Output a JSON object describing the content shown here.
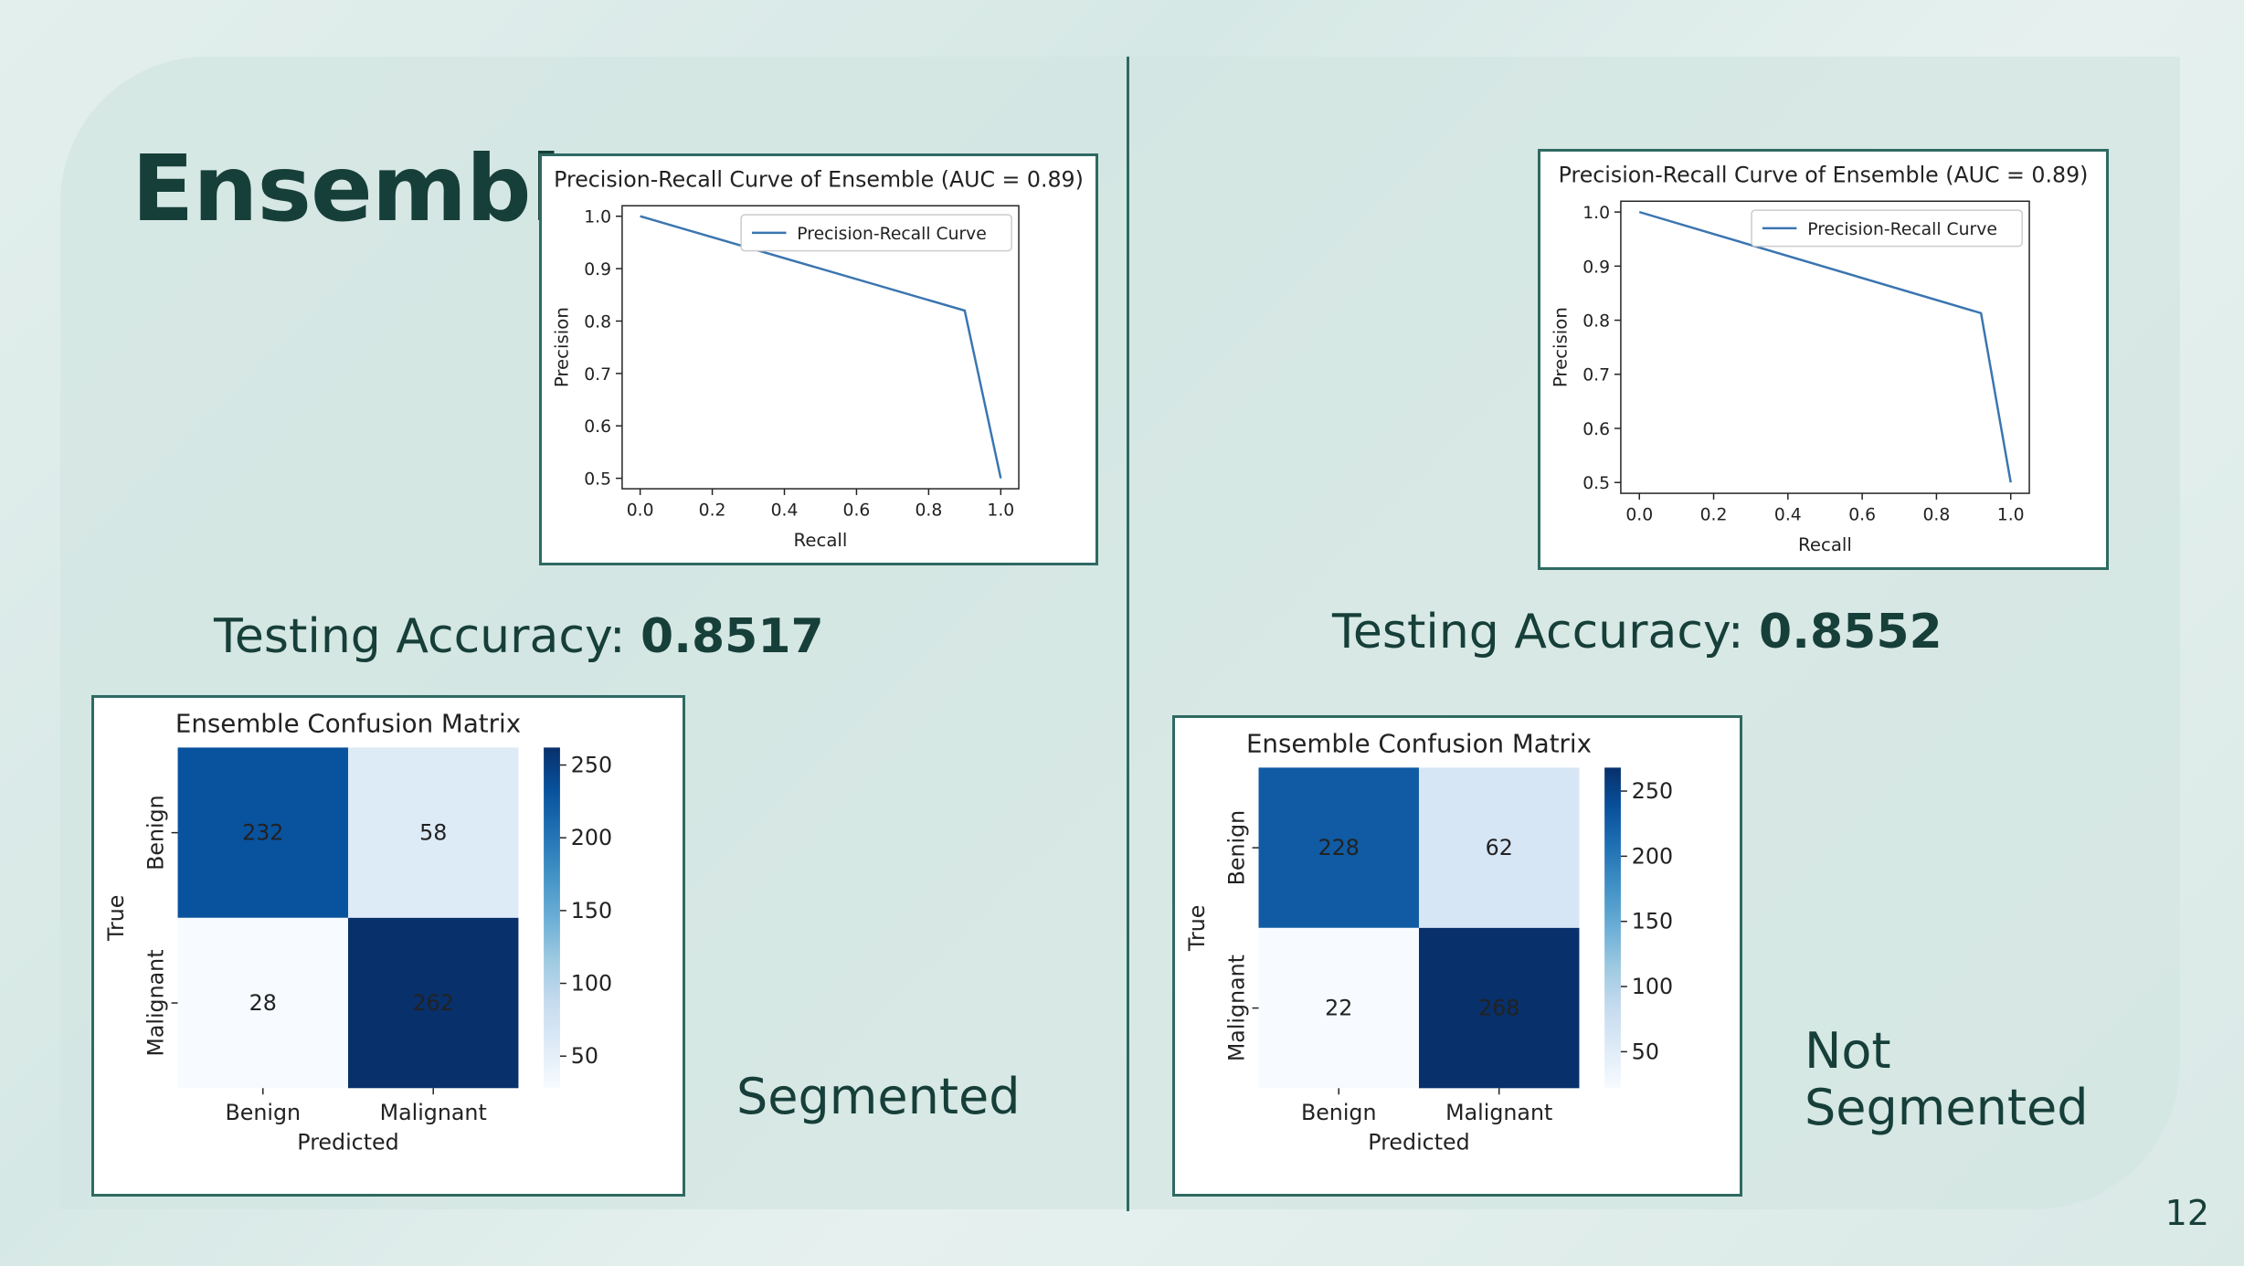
{
  "slide": {
    "title": "Ensemble",
    "page_number": "12"
  },
  "panels": [
    {
      "accuracy_label": "Testing Accuracy:",
      "accuracy_value": "0.8517",
      "variant_label": "Segmented"
    },
    {
      "accuracy_label": "Testing Accuracy:",
      "accuracy_value": "0.8552",
      "variant_label": "Not Segmented"
    }
  ],
  "colors": {
    "line": "#3a75b0",
    "accent_dark": "#173f3a",
    "border": "#2f6a62"
  },
  "chart_data": [
    {
      "type": "line",
      "title": "Precision-Recall Curve of Ensemble (AUC = 0.89)",
      "xlabel": "Recall",
      "ylabel": "Precision",
      "xlim": [
        -0.05,
        1.05
      ],
      "ylim": [
        0.48,
        1.02
      ],
      "xticks": [
        "0.0",
        "0.2",
        "0.4",
        "0.6",
        "0.8",
        "1.0"
      ],
      "yticks": [
        "0.5",
        "0.6",
        "0.7",
        "0.8",
        "0.9",
        "1.0"
      ],
      "legend_position": "top-right",
      "series": [
        {
          "name": "Precision-Recall Curve",
          "x": [
            0.0,
            0.9,
            1.0
          ],
          "y": [
            1.0,
            0.82,
            0.5
          ]
        }
      ]
    },
    {
      "type": "heatmap",
      "title": "Ensemble Confusion Matrix",
      "xlabel": "Predicted",
      "ylabel": "True",
      "x_categories": [
        "Benign",
        "Malignant"
      ],
      "y_categories": [
        "Benign",
        "Malignant"
      ],
      "values": [
        [
          232,
          58
        ],
        [
          28,
          262
        ]
      ],
      "colorbar_ticks": [
        "50",
        "100",
        "150",
        "200",
        "250"
      ],
      "colorbar_range": [
        28,
        262
      ],
      "colormap": "Blues"
    },
    {
      "type": "line",
      "title": "Precision-Recall Curve of Ensemble (AUC = 0.89)",
      "xlabel": "Recall",
      "ylabel": "Precision",
      "xlim": [
        -0.05,
        1.05
      ],
      "ylim": [
        0.48,
        1.02
      ],
      "xticks": [
        "0.0",
        "0.2",
        "0.4",
        "0.6",
        "0.8",
        "1.0"
      ],
      "yticks": [
        "0.5",
        "0.6",
        "0.7",
        "0.8",
        "0.9",
        "1.0"
      ],
      "legend_position": "top-right",
      "series": [
        {
          "name": "Precision-Recall Curve",
          "x": [
            0.0,
            0.92,
            1.0
          ],
          "y": [
            1.0,
            0.813,
            0.5
          ]
        }
      ]
    },
    {
      "type": "heatmap",
      "title": "Ensemble Confusion Matrix",
      "xlabel": "Predicted",
      "ylabel": "True",
      "x_categories": [
        "Benign",
        "Malignant"
      ],
      "y_categories": [
        "Benign",
        "Malignant"
      ],
      "values": [
        [
          228,
          62
        ],
        [
          22,
          268
        ]
      ],
      "colorbar_ticks": [
        "50",
        "100",
        "150",
        "200",
        "250"
      ],
      "colorbar_range": [
        22,
        268
      ],
      "colormap": "Blues"
    }
  ]
}
